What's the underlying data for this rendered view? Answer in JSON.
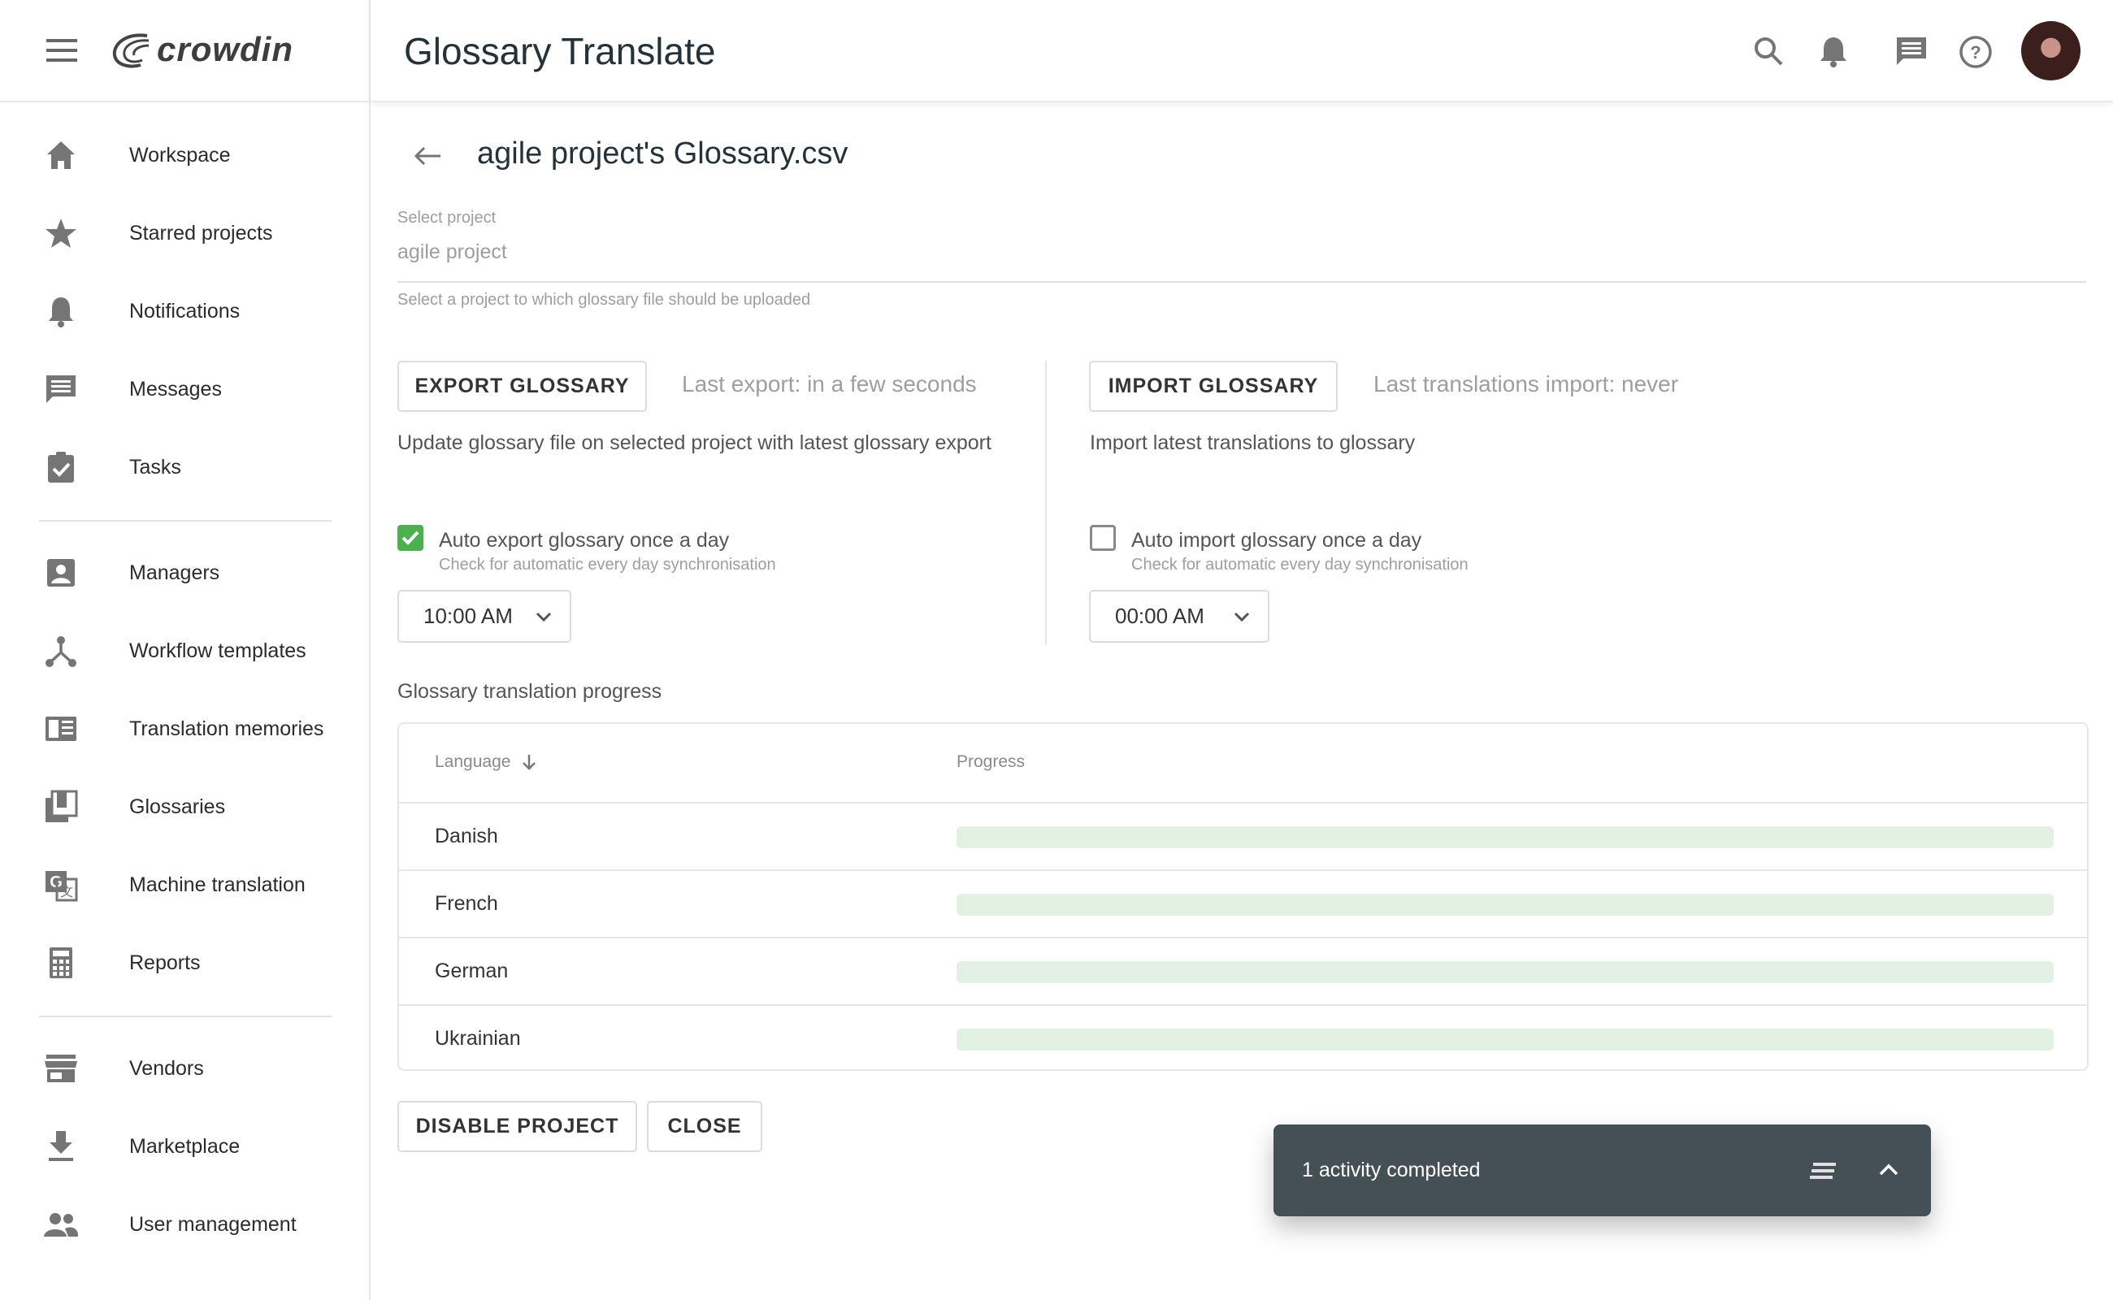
{
  "app": {
    "brand": "crowdin",
    "title": "Glossary Translate"
  },
  "header_icons": [
    "search-icon",
    "bell-icon",
    "message-icon",
    "help-icon",
    "avatar"
  ],
  "sidebar": {
    "items": [
      {
        "label": "Workspace",
        "icon": "home-icon"
      },
      {
        "label": "Starred projects",
        "icon": "star-icon"
      },
      {
        "label": "Notifications",
        "icon": "bell-icon"
      },
      {
        "label": "Messages",
        "icon": "message-icon"
      },
      {
        "label": "Tasks",
        "icon": "task-icon"
      },
      {
        "label": "Managers",
        "icon": "manager-icon"
      },
      {
        "label": "Workflow templates",
        "icon": "workflow-icon"
      },
      {
        "label": "Translation memories",
        "icon": "tm-icon"
      },
      {
        "label": "Glossaries",
        "icon": "glossary-icon"
      },
      {
        "label": "Machine translation",
        "icon": "translate-icon"
      },
      {
        "label": "Reports",
        "icon": "calculator-icon"
      },
      {
        "label": "Vendors",
        "icon": "store-icon"
      },
      {
        "label": "Marketplace",
        "icon": "download-icon"
      },
      {
        "label": "User management",
        "icon": "people-icon"
      }
    ]
  },
  "page": {
    "file_title": "agile project's Glossary.csv",
    "project_field": {
      "label": "Select project",
      "value": "agile project",
      "hint": "Select a project to which glossary file should be uploaded"
    },
    "export": {
      "button": "EXPORT GLOSSARY",
      "status": "Last export: in a few seconds",
      "description": "Update glossary file on selected project with latest glossary export",
      "auto_label": "Auto export glossary once a day",
      "auto_hint": "Check for automatic every day synchronisation",
      "auto_checked": true,
      "time": "10:00 AM"
    },
    "import": {
      "button": "IMPORT GLOSSARY",
      "status": "Last translations import: never",
      "description": "Import latest translations to glossary",
      "auto_label": "Auto import glossary once a day",
      "auto_hint": "Check for automatic every day synchronisation",
      "auto_checked": false,
      "time": "00:00 AM"
    },
    "progress_title": "Glossary translation progress",
    "table": {
      "columns": [
        "Language",
        "Progress"
      ],
      "rows": [
        {
          "language": "Danish",
          "progress": 0
        },
        {
          "language": "French",
          "progress": 0
        },
        {
          "language": "German",
          "progress": 0
        },
        {
          "language": "Ukrainian",
          "progress": 0
        }
      ]
    },
    "buttons": {
      "disable": "DISABLE PROJECT",
      "close": "CLOSE"
    }
  },
  "toast": {
    "text": "1 activity completed"
  },
  "colors": {
    "accent": "#4caf50",
    "toast_bg": "#455056",
    "progress_track": "#e3f0e4"
  }
}
